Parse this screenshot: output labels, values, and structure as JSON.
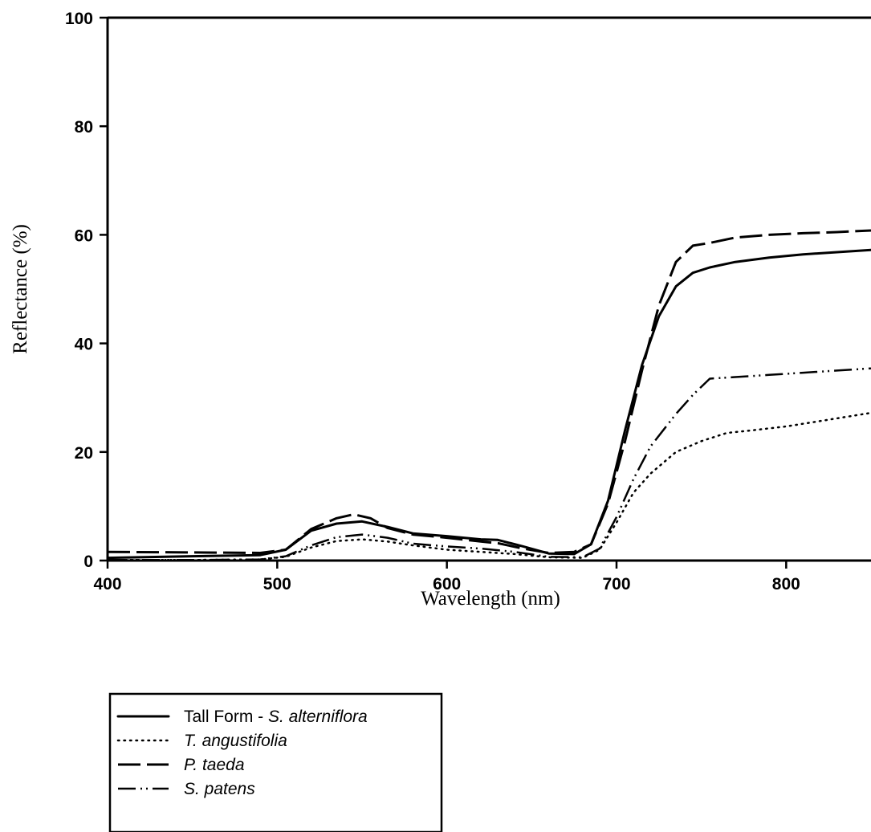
{
  "chart_data": {
    "type": "line",
    "xlabel": "Wavelength (nm)",
    "ylabel": "Reflectance (%)",
    "xlim": [
      400,
      850
    ],
    "ylim": [
      0,
      100
    ],
    "xticks": [
      400,
      500,
      600,
      700,
      800
    ],
    "yticks": [
      0,
      20,
      40,
      60,
      80,
      100
    ],
    "grid": false,
    "legend_position": "bottom-left, below plot",
    "series": [
      {
        "name": "Tall Form - S. alterniflora",
        "name_parts": [
          "Tall Form - ",
          "S.",
          "alterniflora"
        ],
        "dash": "solid",
        "x": [
          400,
          450,
          490,
          505,
          520,
          535,
          550,
          565,
          580,
          600,
          620,
          630,
          645,
          660,
          675,
          685,
          695,
          705,
          715,
          725,
          735,
          745,
          755,
          770,
          790,
          810,
          830,
          850
        ],
        "y": [
          0.5,
          0.8,
          1.0,
          2.0,
          5.5,
          6.8,
          7.2,
          6.2,
          5.0,
          4.5,
          3.9,
          3.8,
          2.6,
          1.3,
          1.2,
          3.0,
          11,
          24,
          36,
          45,
          50.5,
          53,
          54,
          55,
          55.8,
          56.4,
          56.8,
          57.2
        ]
      },
      {
        "name": "T. angustifolia",
        "name_parts": [
          "",
          "T.",
          "angustifolia"
        ],
        "dash": "dotted",
        "x": [
          400,
          450,
          490,
          505,
          520,
          535,
          550,
          565,
          580,
          600,
          620,
          640,
          660,
          680,
          690,
          700,
          710,
          720,
          735,
          750,
          765,
          780,
          800,
          820,
          850
        ],
        "y": [
          0.1,
          0.1,
          0.2,
          0.7,
          2.4,
          3.6,
          3.9,
          3.5,
          2.8,
          2.0,
          1.6,
          1.2,
          0.6,
          0.5,
          2.0,
          7,
          12.5,
          16,
          20,
          22,
          23.5,
          24,
          24.7,
          25.7,
          27.2
        ]
      },
      {
        "name": "P. taeda",
        "name_parts": [
          "",
          "P.",
          "taeda"
        ],
        "dash": "long-dash",
        "x": [
          400,
          450,
          490,
          505,
          520,
          535,
          545,
          555,
          565,
          580,
          600,
          620,
          630,
          645,
          660,
          675,
          685,
          695,
          705,
          715,
          725,
          735,
          745,
          755,
          770,
          790,
          810,
          830,
          850
        ],
        "y": [
          1.6,
          1.5,
          1.4,
          2.0,
          5.8,
          7.8,
          8.5,
          7.8,
          6.0,
          4.8,
          4.2,
          3.5,
          3.2,
          2.2,
          1.4,
          1.6,
          3.0,
          10.5,
          22,
          35,
          47,
          55,
          58,
          58.5,
          59.5,
          60.0,
          60.3,
          60.5,
          60.8
        ]
      },
      {
        "name": "S. patens",
        "name_parts": [
          "",
          "S.",
          "patens"
        ],
        "dash": "dash-dot-dot",
        "x": [
          400,
          450,
          490,
          505,
          520,
          535,
          550,
          565,
          580,
          600,
          620,
          640,
          660,
          680,
          690,
          700,
          710,
          720,
          735,
          745,
          755,
          770,
          790,
          810,
          830,
          850
        ],
        "y": [
          0.1,
          0.1,
          0.2,
          0.8,
          2.8,
          4.3,
          4.8,
          4.2,
          3.1,
          2.6,
          2.2,
          1.6,
          0.7,
          0.6,
          2.2,
          8,
          15,
          21,
          27,
          30.5,
          33.5,
          33.8,
          34.2,
          34.6,
          35.0,
          35.4
        ]
      }
    ]
  }
}
